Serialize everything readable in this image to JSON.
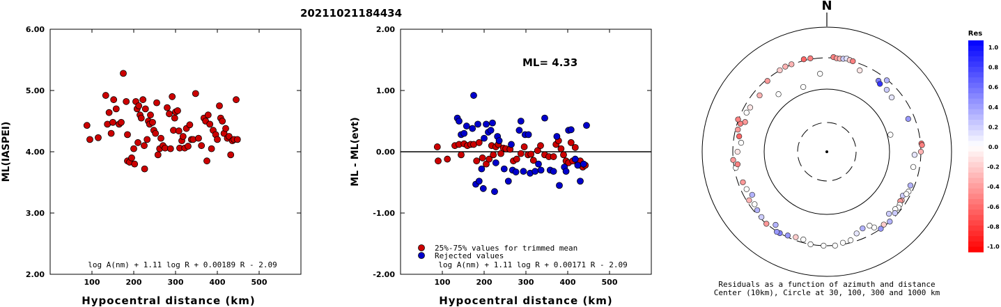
{
  "figure": {
    "title": "20211021184434"
  },
  "chart_data": [
    {
      "type": "scatter",
      "ylabel": "ML(IASPEI)",
      "xlabel": "Hypocentral distance (km)",
      "xlim": [
        0,
        600
      ],
      "ylim": [
        2.0,
        6.0
      ],
      "xticks": [
        "100",
        "200",
        "300",
        "400",
        "500"
      ],
      "yticks": [
        "2.00",
        "3.00",
        "4.00",
        "5.00",
        "6.00"
      ],
      "formula": "log A(nm) + 1.11 log R + 0.00189 R - 2.09",
      "series": [
        {
          "color": "#cc0000",
          "points": [
            [
              88,
              4.43
            ],
            [
              95,
              4.2
            ],
            [
              115,
              4.23
            ],
            [
              133,
              4.92
            ],
            [
              137,
              4.45
            ],
            [
              141,
              4.64
            ],
            [
              146,
              4.3
            ],
            [
              150,
              4.48
            ],
            [
              152,
              4.85
            ],
            [
              158,
              4.7
            ],
            [
              165,
              4.45
            ],
            [
              170,
              4.48
            ],
            [
              175,
              5.28
            ],
            [
              182,
              4.82
            ],
            [
              185,
              4.28
            ],
            [
              185,
              3.85
            ],
            [
              190,
              3.83
            ],
            [
              195,
              3.9
            ],
            [
              200,
              4.05
            ],
            [
              202,
              3.8
            ],
            [
              205,
              4.82
            ],
            [
              208,
              4.7
            ],
            [
              210,
              4.15
            ],
            [
              212,
              4.75
            ],
            [
              215,
              4.6
            ],
            [
              218,
              4.55
            ],
            [
              222,
              4.85
            ],
            [
              225,
              4.1
            ],
            [
              226,
              3.72
            ],
            [
              228,
              4.7
            ],
            [
              232,
              4.2
            ],
            [
              235,
              4.5
            ],
            [
              238,
              4.45
            ],
            [
              240,
              4.6
            ],
            [
              245,
              4.48
            ],
            [
              248,
              4.35
            ],
            [
              252,
              4.3
            ],
            [
              255,
              4.8
            ],
            [
              258,
              3.95
            ],
            [
              262,
              4.05
            ],
            [
              265,
              4.22
            ],
            [
              270,
              4.1
            ],
            [
              275,
              4.06
            ],
            [
              280,
              4.72
            ],
            [
              285,
              4.62
            ],
            [
              288,
              4.05
            ],
            [
              292,
              4.9
            ],
            [
              295,
              4.35
            ],
            [
              298,
              4.55
            ],
            [
              300,
              4.65
            ],
            [
              305,
              4.67
            ],
            [
              308,
              4.34
            ],
            [
              310,
              4.06
            ],
            [
              315,
              4.18
            ],
            [
              318,
              4.25
            ],
            [
              322,
              4.06
            ],
            [
              326,
              4.38
            ],
            [
              330,
              4.09
            ],
            [
              334,
              4.44
            ],
            [
              338,
              4.2
            ],
            [
              342,
              4.2
            ],
            [
              348,
              4.95
            ],
            [
              355,
              4.22
            ],
            [
              362,
              4.1
            ],
            [
              368,
              4.55
            ],
            [
              372,
              4.5
            ],
            [
              375,
              3.85
            ],
            [
              378,
              4.6
            ],
            [
              382,
              4.45
            ],
            [
              386,
              4.05
            ],
            [
              390,
              4.35
            ],
            [
              396,
              4.28
            ],
            [
              400,
              4.2
            ],
            [
              405,
              4.75
            ],
            [
              408,
              4.55
            ],
            [
              412,
              4.5
            ],
            [
              416,
              4.3
            ],
            [
              420,
              4.38
            ],
            [
              424,
              4.22
            ],
            [
              428,
              4.25
            ],
            [
              432,
              3.95
            ],
            [
              436,
              4.18
            ],
            [
              440,
              4.2
            ],
            [
              445,
              4.85
            ],
            [
              448,
              4.2
            ]
          ]
        }
      ]
    },
    {
      "type": "scatter",
      "ylabel": "ML - ML(evt)",
      "xlabel": "Hypocentral distance (km)",
      "xlim": [
        0,
        600
      ],
      "ylim": [
        -2.0,
        2.0
      ],
      "xticks": [
        "100",
        "200",
        "300",
        "400",
        "500"
      ],
      "yticks": [
        "-2.00",
        "-1.00",
        "0.00",
        "1.00",
        "2.00"
      ],
      "annotation": "ML= 4.33",
      "formula": "log A(nm) + 1.11 log R + 0.00171 R - 2.09",
      "legend": [
        {
          "label": "25%-75% values for trimmed mean",
          "color": "#cc0000"
        },
        {
          "label": "Rejected values",
          "color": "#0000cc"
        }
      ],
      "series": [
        {
          "name": "25%-75% values for trimmed mean",
          "color": "#cc0000",
          "points": [
            [
              88,
              0.08
            ],
            [
              90,
              -0.15
            ],
            [
              112,
              -0.12
            ],
            [
              130,
              0.1
            ],
            [
              140,
              0.12
            ],
            [
              145,
              -0.05
            ],
            [
              152,
              0.13
            ],
            [
              160,
              0.1
            ],
            [
              168,
              0.12
            ],
            [
              175,
              0.12
            ],
            [
              182,
              -0.15
            ],
            [
              188,
              0.15
            ],
            [
              196,
              -0.1
            ],
            [
              205,
              -0.2
            ],
            [
              212,
              -0.12
            ],
            [
              218,
              0.1
            ],
            [
              222,
              -0.05
            ],
            [
              228,
              0.08
            ],
            [
              234,
              0.12
            ],
            [
              240,
              -0.03
            ],
            [
              246,
              0.06
            ],
            [
              252,
              0.05
            ],
            [
              262,
              0.04
            ],
            [
              270,
              -0.15
            ],
            [
              278,
              -0.12
            ],
            [
              288,
              -0.03
            ],
            [
              296,
              0.08
            ],
            [
              305,
              -0.05
            ],
            [
              312,
              -0.04
            ],
            [
              318,
              -0.14
            ],
            [
              328,
              0.02
            ],
            [
              335,
              0.1
            ],
            [
              345,
              -0.05
            ],
            [
              355,
              -0.08
            ],
            [
              366,
              -0.08
            ],
            [
              372,
              0.12
            ],
            [
              378,
              0.18
            ],
            [
              384,
              0.05
            ],
            [
              390,
              -0.05
            ],
            [
              396,
              -0.15
            ],
            [
              402,
              -0.18
            ],
            [
              408,
              0.15
            ],
            [
              412,
              -0.15
            ],
            [
              418,
              0.07
            ],
            [
              424,
              -0.2
            ],
            [
              430,
              -0.15
            ],
            [
              436,
              -0.25
            ],
            [
              442,
              -0.22
            ]
          ]
        },
        {
          "name": "Rejected values",
          "color": "#0000cc",
          "points": [
            [
              136,
              0.55
            ],
            [
              140,
              0.5
            ],
            [
              145,
              0.28
            ],
            [
              152,
              0.3
            ],
            [
              158,
              0.42
            ],
            [
              172,
              0.38
            ],
            [
              175,
              0.92
            ],
            [
              180,
              -0.53
            ],
            [
              185,
              0.45
            ],
            [
              188,
              -0.48
            ],
            [
              194,
              -0.28
            ],
            [
              198,
              -0.6
            ],
            [
              200,
              0.22
            ],
            [
              205,
              0.45
            ],
            [
              210,
              0.32
            ],
            [
              216,
              0.35
            ],
            [
              220,
              0.47
            ],
            [
              225,
              -0.65
            ],
            [
              228,
              -0.18
            ],
            [
              232,
              0.25
            ],
            [
              236,
              0.18
            ],
            [
              248,
              -0.28
            ],
            [
              258,
              -0.48
            ],
            [
              265,
              0.12
            ],
            [
              268,
              -0.3
            ],
            [
              276,
              -0.33
            ],
            [
              284,
              0.35
            ],
            [
              288,
              0.5
            ],
            [
              294,
              -0.32
            ],
            [
              298,
              0.28
            ],
            [
              306,
              0.28
            ],
            [
              310,
              -0.35
            ],
            [
              322,
              -0.32
            ],
            [
              330,
              -0.2
            ],
            [
              336,
              -0.3
            ],
            [
              345,
              0.55
            ],
            [
              358,
              -0.3
            ],
            [
              366,
              -0.32
            ],
            [
              374,
              0.25
            ],
            [
              380,
              -0.55
            ],
            [
              392,
              -0.25
            ],
            [
              396,
              -0.32
            ],
            [
              402,
              0.35
            ],
            [
              408,
              0.36
            ],
            [
              418,
              -0.12
            ],
            [
              424,
              -0.22
            ],
            [
              430,
              -0.48
            ],
            [
              438,
              -0.2
            ],
            [
              445,
              0.43
            ]
          ]
        }
      ]
    },
    {
      "type": "polar",
      "title": "N",
      "caption": [
        "Residuals as a function of azimuth and distance",
        "Center (10km), Circle at 30, 100, 300 and 1000 km"
      ],
      "colorbar": {
        "title": "Res",
        "ticks": [
          "1.0",
          "0.8",
          "0.6",
          "0.4",
          "0.2",
          "0.0",
          "-0.2",
          "-0.4",
          "-0.6",
          "-0.8",
          "-1.0"
        ],
        "positive_color": "#0000ff",
        "negative_color": "#ff0000"
      },
      "rings_km": [
        30,
        100,
        300,
        1000
      ],
      "stations": [
        [
          4,
          320,
          -0.5
        ],
        [
          6,
          300,
          -0.4
        ],
        [
          8,
          300,
          -0.3
        ],
        [
          10,
          310,
          0.2
        ],
        [
          12,
          330,
          0.1
        ],
        [
          14,
          312,
          -0.2
        ],
        [
          16,
          305,
          -0.5
        ],
        [
          350,
          320,
          -0.5
        ],
        [
          346,
          330,
          -0.6
        ],
        [
          338,
          308,
          -0.3
        ],
        [
          334,
          317,
          -0.3
        ],
        [
          330,
          302,
          -0.2
        ],
        [
          22,
          260,
          -0.1
        ],
        [
          36,
          260,
          0.5
        ],
        [
          40,
          295,
          0.3
        ],
        [
          38,
          250,
          0.8
        ],
        [
          44,
          250,
          0.2
        ],
        [
          50,
          240,
          0.1
        ],
        [
          320,
          290,
          -0.4
        ],
        [
          310,
          260,
          -0.3
        ],
        [
          300,
          265,
          -0.1
        ],
        [
          296,
          270,
          0.0
        ],
        [
          290,
          255,
          -0.4
        ],
        [
          288,
          280,
          -0.5
        ],
        [
          355,
          200,
          0.0
        ],
        [
          340,
          140,
          0.0
        ],
        [
          320,
          180,
          0.0
        ],
        [
          75,
          120,
          0.0
        ],
        [
          85,
          320,
          -0.6
        ],
        [
          86,
          330,
          -0.5
        ],
        [
          90,
          300,
          -0.3
        ],
        [
          92,
          260,
          0.1
        ],
        [
          68,
          260,
          0.4
        ],
        [
          100,
          260,
          0.0
        ],
        [
          120,
          260,
          0.2
        ],
        [
          123,
          270,
          -0.3
        ],
        [
          124,
          265,
          -0.4
        ],
        [
          126,
          275,
          0.0
        ],
        [
          128,
          280,
          0.0
        ],
        [
          130,
          270,
          0.0
        ],
        [
          132,
          285,
          0.2
        ],
        [
          116,
          280,
          0.0
        ],
        [
          118,
          275,
          0.0
        ],
        [
          112,
          275,
          0.3
        ],
        [
          135,
          260,
          0.2
        ],
        [
          138,
          300,
          0.3
        ],
        [
          142,
          290,
          -0.2
        ],
        [
          145,
          300,
          0.4
        ],
        [
          148,
          270,
          0.0
        ],
        [
          150,
          245,
          0.0
        ],
        [
          155,
          240,
          0.3
        ],
        [
          160,
          255,
          0.1
        ],
        [
          165,
          285,
          0.0
        ],
        [
          170,
          290,
          0.0
        ],
        [
          175,
          305,
          0.0
        ],
        [
          182,
          300,
          0.0
        ],
        [
          190,
          300,
          0.0
        ],
        [
          195,
          280,
          0.0
        ],
        [
          200,
          280,
          -0.2
        ],
        [
          205,
          290,
          0.4
        ],
        [
          210,
          300,
          0.5
        ],
        [
          212,
          310,
          0.4
        ],
        [
          215,
          270,
          0.3
        ],
        [
          220,
          300,
          -0.4
        ],
        [
          225,
          290,
          0.2
        ],
        [
          230,
          280,
          0.3
        ],
        [
          234,
          270,
          0.0
        ],
        [
          240,
          250,
          0.3
        ],
        [
          250,
          270,
          -0.4
        ],
        [
          260,
          290,
          0.0
        ],
        [
          262,
          275,
          -0.5
        ],
        [
          265,
          300,
          -0.4
        ],
        [
          270,
          270,
          -0.1
        ],
        [
          245,
          265,
          0.0
        ],
        [
          238,
          285,
          -0.3
        ],
        [
          276,
          250,
          0.0
        ],
        [
          280,
          268,
          -0.6
        ],
        [
          284,
          285,
          -0.4
        ],
        [
          290,
          310,
          -0.5
        ]
      ]
    }
  ]
}
